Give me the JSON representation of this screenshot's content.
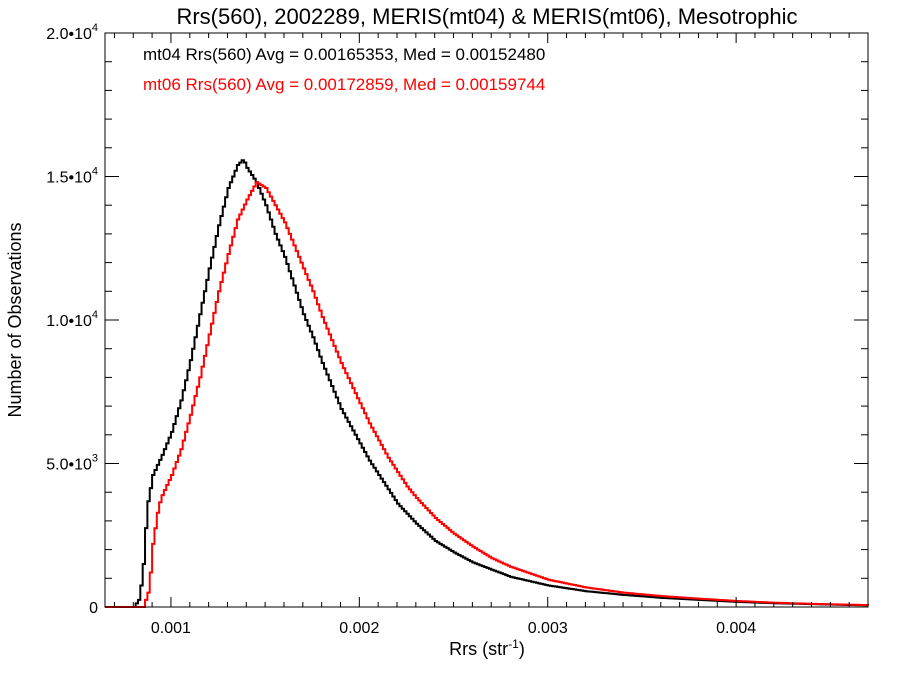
{
  "chart_data": {
    "type": "line",
    "title": "Rrs(560), 2002289, MERIS(mt04) & MERIS(mt06), Mesotrophic",
    "xlabel": "Rrs (str",
    "xlabel_sup": "-1",
    "xlabel_close": ")",
    "ylabel": "Number of Observations",
    "xlim": [
      0.00065,
      0.0047
    ],
    "ylim": [
      0,
      20000
    ],
    "x_ticks": [
      {
        "value": 0.001,
        "label": "0.001"
      },
      {
        "value": 0.002,
        "label": "0.002"
      },
      {
        "value": 0.003,
        "label": "0.003"
      },
      {
        "value": 0.004,
        "label": "0.004"
      }
    ],
    "y_ticks": [
      {
        "value": 0,
        "label": "0",
        "sup": ""
      },
      {
        "value": 5000,
        "label": "5.0•10",
        "sup": "3"
      },
      {
        "value": 10000,
        "label": "1.0•10",
        "sup": "4"
      },
      {
        "value": 15000,
        "label": "1.5•10",
        "sup": "4"
      },
      {
        "value": 20000,
        "label": "2.0•10",
        "sup": "4"
      }
    ],
    "series": [
      {
        "name": "mt04",
        "color": "#000000",
        "annotation": "mt04 Rrs(560) Avg = 0.00165353, Med = 0.00152480",
        "points": [
          [
            0.00065,
            0
          ],
          [
            0.0008,
            0
          ],
          [
            0.00083,
            300
          ],
          [
            0.00085,
            1500
          ],
          [
            0.00087,
            3500
          ],
          [
            0.0009,
            4600
          ],
          [
            0.00095,
            5300
          ],
          [
            0.001,
            6100
          ],
          [
            0.00105,
            7200
          ],
          [
            0.0011,
            8600
          ],
          [
            0.00115,
            10200
          ],
          [
            0.0012,
            11800
          ],
          [
            0.00125,
            13300
          ],
          [
            0.0013,
            14600
          ],
          [
            0.00135,
            15400
          ],
          [
            0.00138,
            15600
          ],
          [
            0.0014,
            15300
          ],
          [
            0.00145,
            14800
          ],
          [
            0.0015,
            14000
          ],
          [
            0.00155,
            13000
          ],
          [
            0.0016,
            12200
          ],
          [
            0.00165,
            11200
          ],
          [
            0.0017,
            10200
          ],
          [
            0.00175,
            9400
          ],
          [
            0.0018,
            8500
          ],
          [
            0.00185,
            7700
          ],
          [
            0.0019,
            6900
          ],
          [
            0.00195,
            6300
          ],
          [
            0.002,
            5700
          ],
          [
            0.00205,
            5100
          ],
          [
            0.0021,
            4600
          ],
          [
            0.00215,
            4100
          ],
          [
            0.0022,
            3600
          ],
          [
            0.00225,
            3250
          ],
          [
            0.0023,
            2900
          ],
          [
            0.0024,
            2300
          ],
          [
            0.0025,
            1900
          ],
          [
            0.0026,
            1550
          ],
          [
            0.0027,
            1300
          ],
          [
            0.0028,
            1050
          ],
          [
            0.003,
            750
          ],
          [
            0.0032,
            550
          ],
          [
            0.0034,
            420
          ],
          [
            0.0036,
            320
          ],
          [
            0.0038,
            250
          ],
          [
            0.004,
            180
          ],
          [
            0.0042,
            130
          ],
          [
            0.0044,
            100
          ],
          [
            0.0046,
            70
          ],
          [
            0.0047,
            60
          ]
        ]
      },
      {
        "name": "mt06",
        "color": "#ff0000",
        "annotation": "mt06 Rrs(560) Avg = 0.00172859, Med = 0.00159744",
        "points": [
          [
            0.00065,
            0
          ],
          [
            0.00085,
            0
          ],
          [
            0.00088,
            600
          ],
          [
            0.0009,
            2200
          ],
          [
            0.00093,
            3500
          ],
          [
            0.00095,
            3900
          ],
          [
            0.001,
            4600
          ],
          [
            0.00105,
            5500
          ],
          [
            0.0011,
            6700
          ],
          [
            0.00115,
            8000
          ],
          [
            0.0012,
            9500
          ],
          [
            0.00125,
            11000
          ],
          [
            0.0013,
            12300
          ],
          [
            0.00135,
            13500
          ],
          [
            0.0014,
            14200
          ],
          [
            0.00145,
            14800
          ],
          [
            0.0015,
            14600
          ],
          [
            0.00155,
            14000
          ],
          [
            0.0016,
            13400
          ],
          [
            0.00165,
            12600
          ],
          [
            0.0017,
            11800
          ],
          [
            0.00175,
            11000
          ],
          [
            0.0018,
            10100
          ],
          [
            0.00185,
            9300
          ],
          [
            0.0019,
            8500
          ],
          [
            0.00195,
            7800
          ],
          [
            0.002,
            7100
          ],
          [
            0.00205,
            6400
          ],
          [
            0.0021,
            5800
          ],
          [
            0.00215,
            5200
          ],
          [
            0.0022,
            4700
          ],
          [
            0.00225,
            4200
          ],
          [
            0.0023,
            3800
          ],
          [
            0.0024,
            3100
          ],
          [
            0.0025,
            2550
          ],
          [
            0.0026,
            2100
          ],
          [
            0.0027,
            1700
          ],
          [
            0.0028,
            1400
          ],
          [
            0.003,
            950
          ],
          [
            0.0032,
            680
          ],
          [
            0.0034,
            500
          ],
          [
            0.0036,
            380
          ],
          [
            0.0038,
            290
          ],
          [
            0.004,
            210
          ],
          [
            0.0042,
            150
          ],
          [
            0.0044,
            110
          ],
          [
            0.0046,
            80
          ],
          [
            0.0047,
            65
          ]
        ]
      }
    ]
  }
}
